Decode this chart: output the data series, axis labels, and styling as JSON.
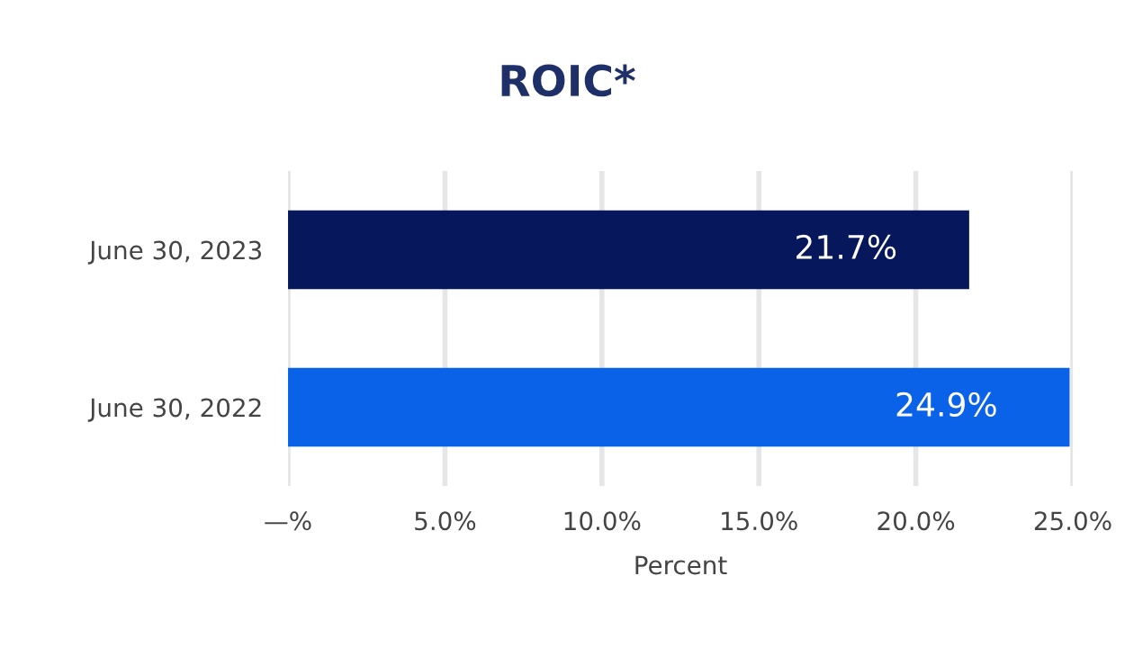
{
  "chart_data": {
    "type": "bar",
    "orientation": "horizontal",
    "title": "ROIC*",
    "xlabel": "Percent",
    "categories": [
      "June 30, 2023",
      "June 30, 2022"
    ],
    "values": [
      21.7,
      24.9
    ],
    "colors": [
      "#07175c",
      "#0a62e8"
    ],
    "value_labels": [
      "21.7%",
      "24.9%"
    ],
    "xlim": [
      0,
      25
    ],
    "xticks": [
      {
        "value": 0,
        "label": "—%"
      },
      {
        "value": 5,
        "label": "5.0%"
      },
      {
        "value": 10,
        "label": "10.0%"
      },
      {
        "value": 15,
        "label": "15.0%"
      },
      {
        "value": 20,
        "label": "20.0%"
      },
      {
        "value": 25,
        "label": "25.0%"
      }
    ],
    "grid": "x",
    "legend": false
  }
}
